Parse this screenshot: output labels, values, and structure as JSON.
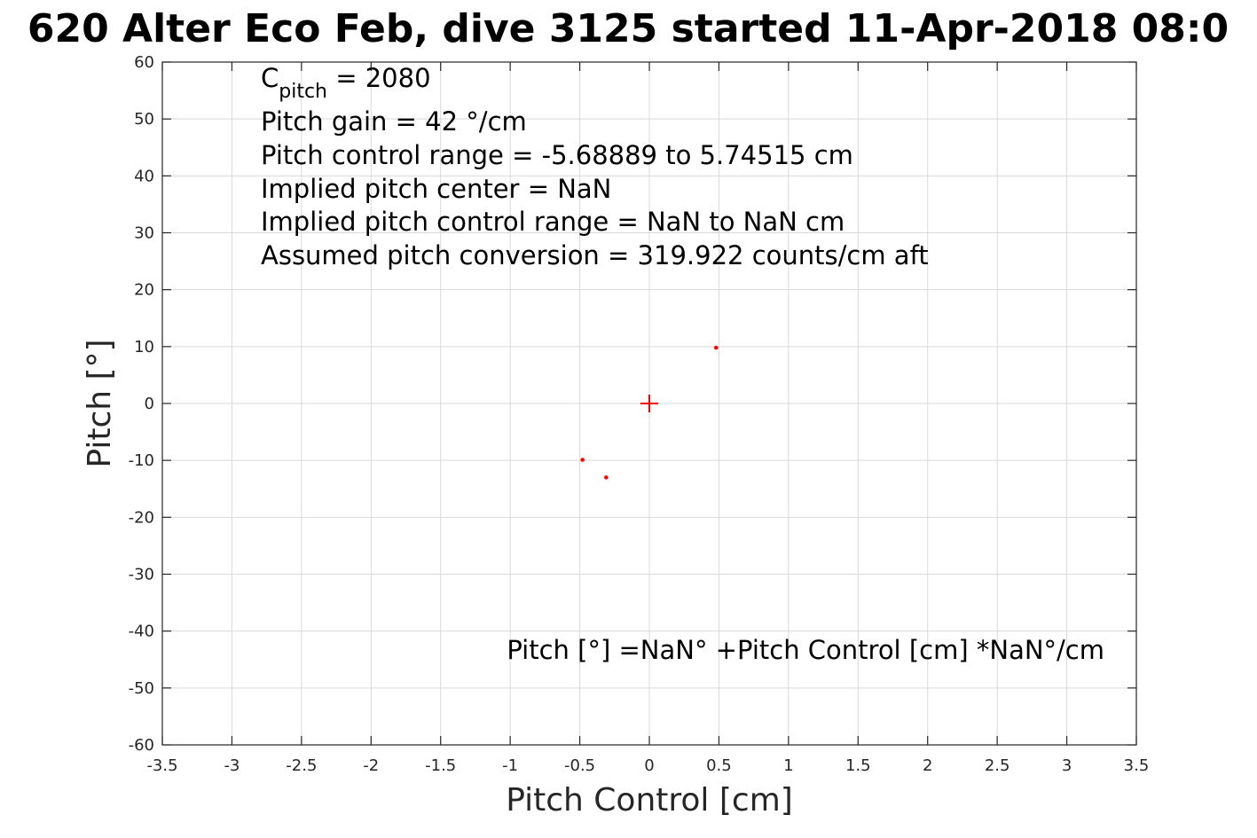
{
  "chart_data": {
    "type": "scatter",
    "title": "620 Alter Eco Feb, dive 3125 started 11-Apr-2018 08:0",
    "xlabel": "Pitch Control [cm]",
    "ylabel": "Pitch [°]",
    "xlim": [
      -3.5,
      3.5
    ],
    "ylim": [
      -60,
      60
    ],
    "xticks": [
      "-3.5",
      "-3",
      "-2.5",
      "-2",
      "-1.5",
      "-1",
      "-0.5",
      "0",
      "0.5",
      "1",
      "1.5",
      "2",
      "2.5",
      "3",
      "3.5"
    ],
    "yticks": [
      "60",
      "50",
      "40",
      "30",
      "20",
      "10",
      "0",
      "-10",
      "-20",
      "-30",
      "-40",
      "-50",
      "-60"
    ],
    "grid": true,
    "series": [
      {
        "marker": "dot",
        "color": "#ff0000",
        "points": [
          {
            "x": 0.48,
            "y": 9.8
          },
          {
            "x": -0.48,
            "y": -9.9
          },
          {
            "x": -0.31,
            "y": -13.0
          }
        ]
      },
      {
        "marker": "plus",
        "color": "#ff0000",
        "points": [
          {
            "x": 0.0,
            "y": 0.0
          }
        ]
      }
    ],
    "annotations": {
      "cpitch_main": "C",
      "cpitch_sub": "pitch",
      "cpitch_value": " = 2080",
      "lines": [
        "Pitch gain = 42 °/cm",
        "Pitch control range = -5.68889 to 5.74515 cm",
        "Implied pitch center = NaN",
        "Implied pitch control range = NaN to NaN cm",
        "Assumed pitch conversion = 319.922 counts/cm aft"
      ],
      "fit_equation": "Pitch [°] =NaN° +Pitch Control [cm] *NaN°/cm"
    }
  }
}
